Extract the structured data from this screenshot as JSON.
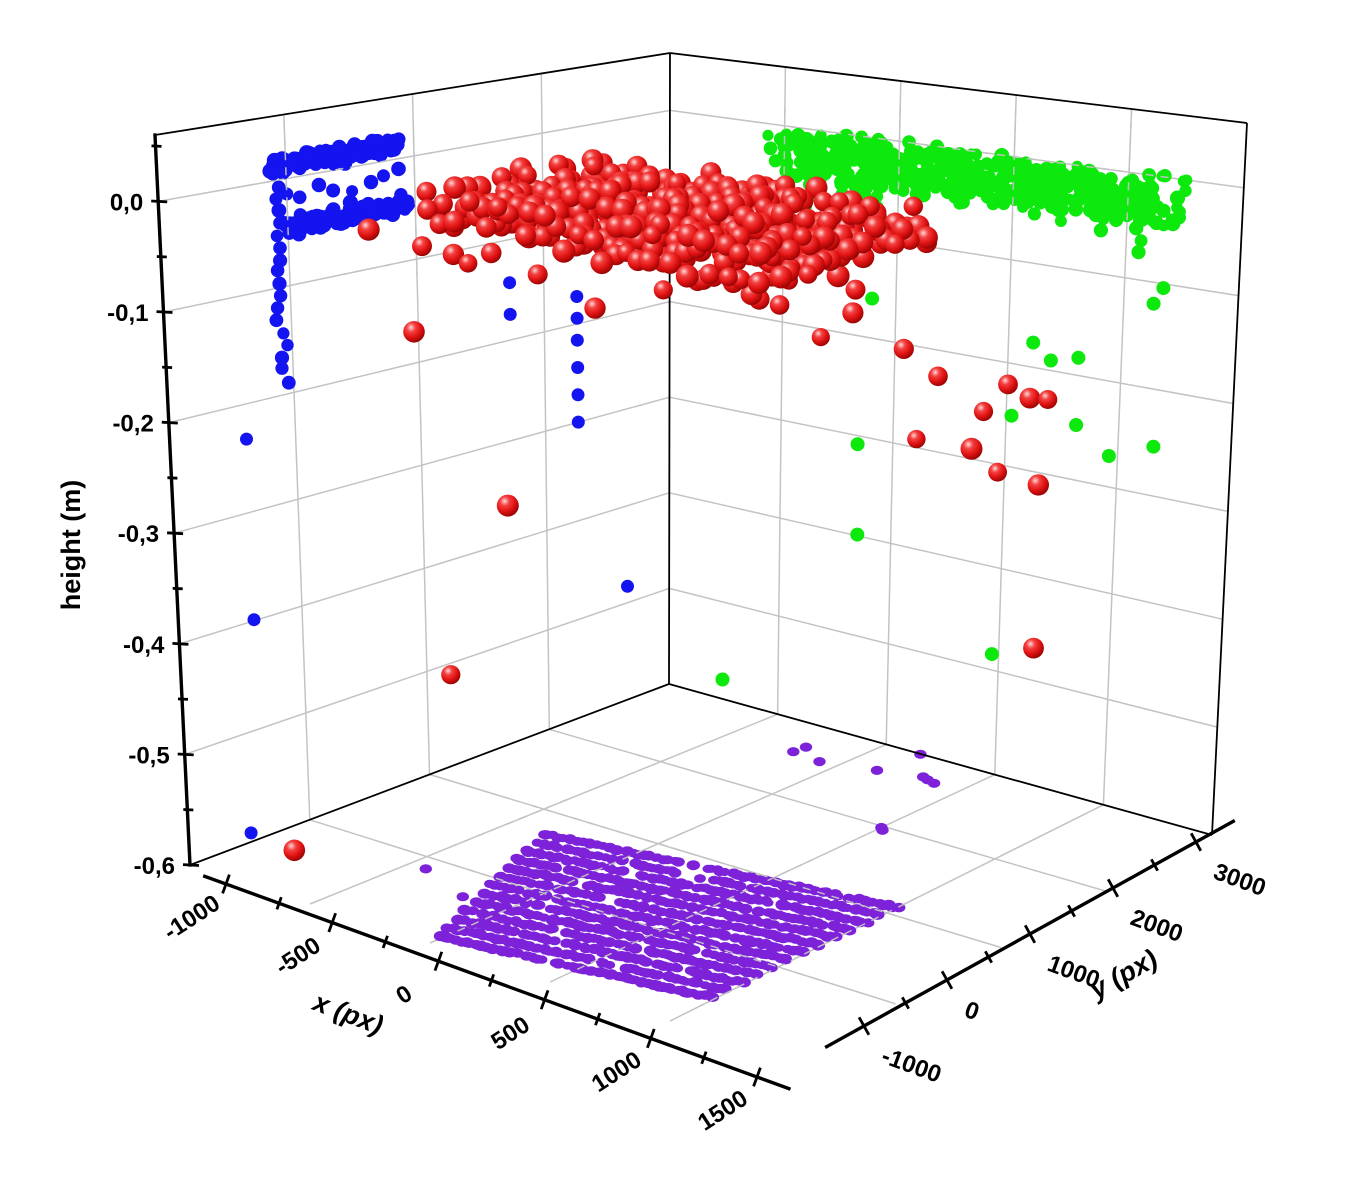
{
  "chart_data": {
    "type": "scatter",
    "subtype": "scatter3d",
    "title": "",
    "decimal_comma": true,
    "axes": {
      "x": {
        "label": "x (px)",
        "tick_labels": [
          "-1000",
          "-500",
          "0",
          "500",
          "1000",
          "1500"
        ],
        "tick_values": [
          -1000,
          -500,
          0,
          500,
          1000,
          1500
        ],
        "minor_step": 250,
        "range": [
          -1000,
          1500
        ]
      },
      "y": {
        "label": "y (px)",
        "tick_labels": [
          "-1000",
          "0",
          "1000",
          "2000",
          "3000"
        ],
        "tick_values": [
          -1000,
          0,
          1000,
          2000,
          3000
        ],
        "minor_step": 500,
        "range": [
          -1000,
          3000
        ]
      },
      "z": {
        "label": "height (m)",
        "tick_labels": [
          "0,0",
          "-0,1",
          "-0,2",
          "-0,3",
          "-0,4",
          "-0,5",
          "-0,6"
        ],
        "tick_values": [
          0,
          -0.1,
          -0.2,
          -0.3,
          -0.4,
          -0.5,
          -0.6
        ],
        "minor_step": 0.05,
        "range": [
          -0.6,
          0.06
        ]
      }
    },
    "grid": {
      "walls": true,
      "floor": true,
      "wall_z_lines": [
        0,
        -0.1,
        -0.2,
        -0.3,
        -0.4,
        -0.5
      ],
      "left_wall_y_lines": [
        0,
        1000,
        2000
      ],
      "right_wall_x_lines": [
        -500,
        0,
        500,
        1000
      ]
    },
    "colors": {
      "blue": "#1414f0",
      "green": "#0de80d",
      "red": "#e01212",
      "red_highlight": "#ffd8d8",
      "red_dark": "#8f0202",
      "purple": "#7d22d8",
      "grid": "#c3c3c3",
      "axis": "#000000",
      "background": "#ffffff"
    },
    "series": [
      {
        "id": "blue-wall-scan",
        "color_key": "blue",
        "marker": "dot",
        "marker_r_px": 6.5,
        "pattern": "square-wave raster near left wall",
        "x_center": -700,
        "y_range": [
          -660,
          360
        ],
        "z_high": 0.038,
        "z_low": -0.02,
        "wave_period_y": 128,
        "drip": {
          "x": -700,
          "y": -655,
          "z_from": 0.03,
          "z_to": -0.16
        },
        "extra_points": [
          [
            -850,
            -680,
            -0.216
          ],
          [
            -850,
            -680,
            -0.38
          ],
          [
            -900,
            -680,
            -0.577
          ],
          [
            -250,
            300,
            -0.072
          ],
          [
            -250,
            300,
            -0.101
          ],
          [
            -100,
            550,
            -0.085
          ],
          [
            -100,
            550,
            -0.105
          ],
          [
            -100,
            550,
            -0.125
          ],
          [
            -100,
            550,
            -0.15
          ],
          [
            -100,
            550,
            -0.175
          ],
          [
            -100,
            550,
            -0.2
          ],
          [
            50,
            650,
            -0.346
          ]
        ]
      },
      {
        "id": "green-wall-band",
        "color_key": "green",
        "marker": "dot",
        "marker_r_px": 7,
        "pattern": "dense band near right wall",
        "x_range": [
          -420,
          1260
        ],
        "y_center": 2860,
        "y_spread": 330,
        "z_top": 0.002,
        "z_spread": 0.042,
        "drip_z_min": -0.075,
        "drip_count": 18,
        "extra_points": [
          [
            0,
            2800,
            -0.15
          ],
          [
            760,
            2700,
            -0.16
          ],
          [
            830,
            2720,
            -0.175
          ],
          [
            930,
            2760,
            -0.17
          ],
          [
            700,
            2650,
            -0.23
          ],
          [
            960,
            2700,
            -0.23
          ],
          [
            1180,
            2900,
            -0.115
          ],
          [
            1210,
            2920,
            -0.1
          ],
          [
            1050,
            2820,
            -0.26
          ],
          [
            1230,
            2850,
            -0.245
          ],
          [
            -20,
            2750,
            -0.382
          ],
          [
            620,
            2700,
            -0.463
          ],
          [
            -550,
            2620,
            -0.55
          ],
          [
            0,
            2700,
            -0.29
          ],
          [
            350,
            2870,
            -0.045
          ]
        ]
      },
      {
        "id": "red-sphere-slab",
        "color_key": "red",
        "marker": "sphere",
        "marker_r_px": 10.3,
        "pattern": "dense horizontal slab of shaded spheres",
        "x_range": [
          -550,
          850
        ],
        "y_range": [
          150,
          1600
        ],
        "z_center": -0.012,
        "z_jitter": 0.036,
        "extra_points": [
          [
            -650,
            300,
            -0.135
          ],
          [
            -300,
            350,
            -0.28
          ],
          [
            -480,
            200,
            -0.44
          ],
          [
            -750,
            -620,
            -0.585
          ],
          [
            -800,
            250,
            -0.045
          ],
          [
            0,
            500,
            -0.09
          ],
          [
            300,
            1050,
            -0.07
          ],
          [
            420,
            1200,
            -0.09
          ],
          [
            520,
            1350,
            -0.12
          ],
          [
            650,
            1800,
            -0.14
          ],
          [
            700,
            2000,
            -0.17
          ],
          [
            850,
            2100,
            -0.2
          ],
          [
            900,
            1900,
            -0.225
          ],
          [
            1000,
            2200,
            -0.185
          ],
          [
            820,
            2300,
            -0.265
          ],
          [
            950,
            2400,
            -0.275
          ],
          [
            760,
            1700,
            -0.215
          ],
          [
            1050,
            1900,
            -0.16
          ],
          [
            1150,
            2050,
            -0.175
          ],
          [
            1000,
            2300,
            -0.42
          ],
          [
            580,
            1500,
            -0.1
          ],
          [
            250,
            900,
            -0.065
          ]
        ]
      },
      {
        "id": "purple-floor-raster",
        "color_key": "purple",
        "marker": "dot",
        "marker_r_px": 5.2,
        "pattern": "diagonal raster stripes on floor",
        "z": -0.6,
        "stripe_count": 13,
        "stripe_start": [
          -350,
          700
        ],
        "stripe_step": [
          28,
          -132
        ],
        "stripe_delta": [
          1350,
          400
        ],
        "stripe_shrink": 0.022,
        "extra_points": [
          [
            -430,
            -150,
            -0.6
          ],
          [
            -180,
            -340,
            -0.6
          ],
          [
            -55,
            -220,
            -0.6
          ],
          [
            -210,
            2590,
            -0.6
          ],
          [
            -205,
            2690,
            -0.6
          ],
          [
            -75,
            2560,
            -0.6
          ],
          [
            140,
            2650,
            -0.6
          ],
          [
            160,
            2995,
            -0.6
          ],
          [
            310,
            2730,
            -0.6
          ],
          [
            340,
            2710,
            -0.6
          ],
          [
            380,
            2690,
            -0.6
          ],
          [
            500,
            1980,
            -0.6
          ],
          [
            520,
            1950,
            -0.6
          ]
        ]
      }
    ]
  }
}
